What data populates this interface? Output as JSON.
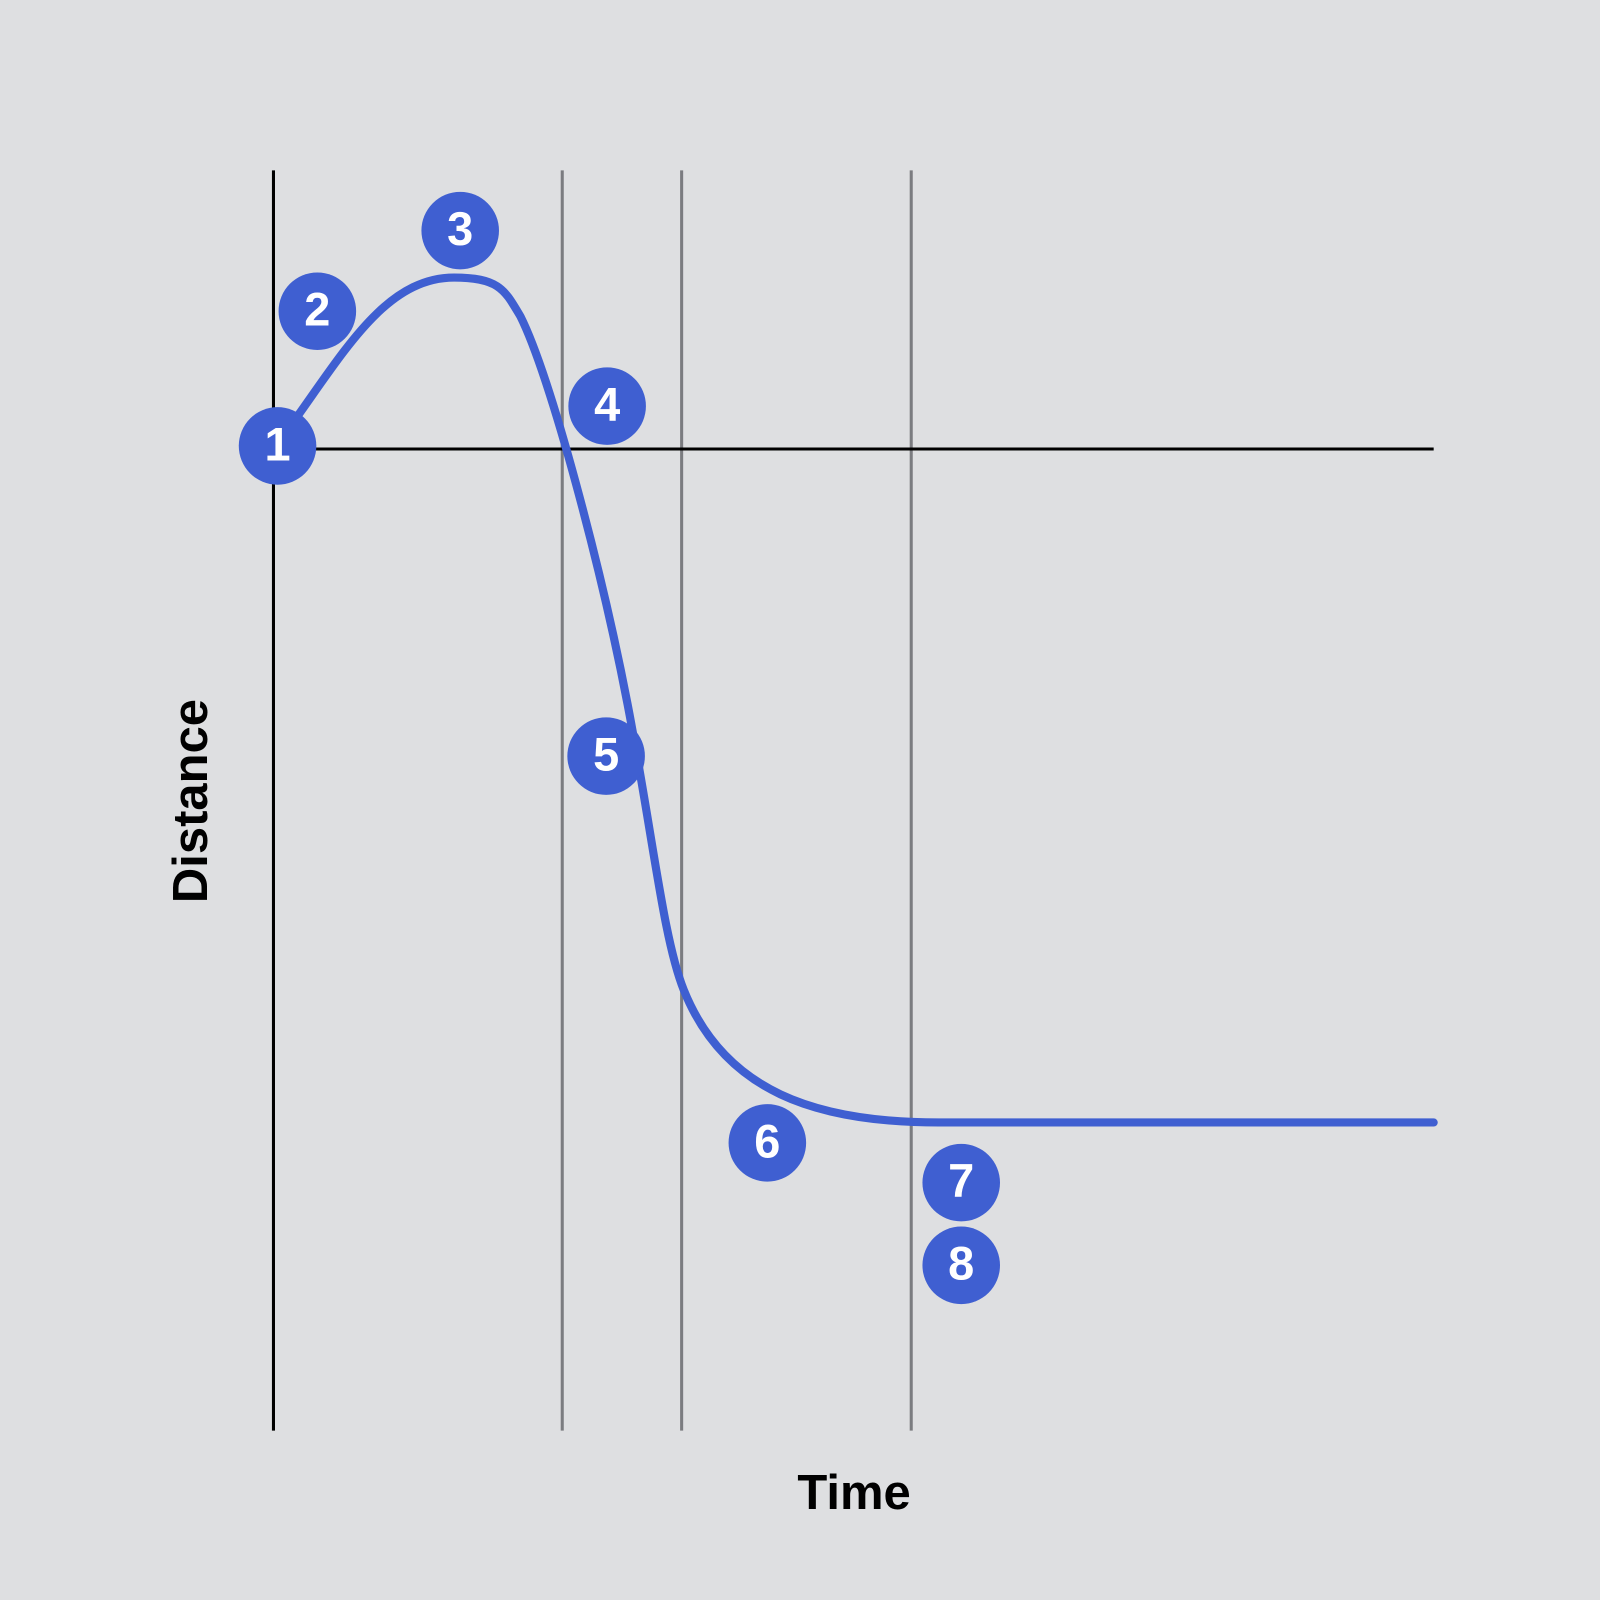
{
  "axes": {
    "x_label": "Time",
    "y_label": "Distance"
  },
  "markers": [
    {
      "label": "1"
    },
    {
      "label": "2"
    },
    {
      "label": "3"
    },
    {
      "label": "4"
    },
    {
      "label": "5"
    },
    {
      "label": "6"
    },
    {
      "label": "7"
    },
    {
      "label": "8"
    }
  ]
}
